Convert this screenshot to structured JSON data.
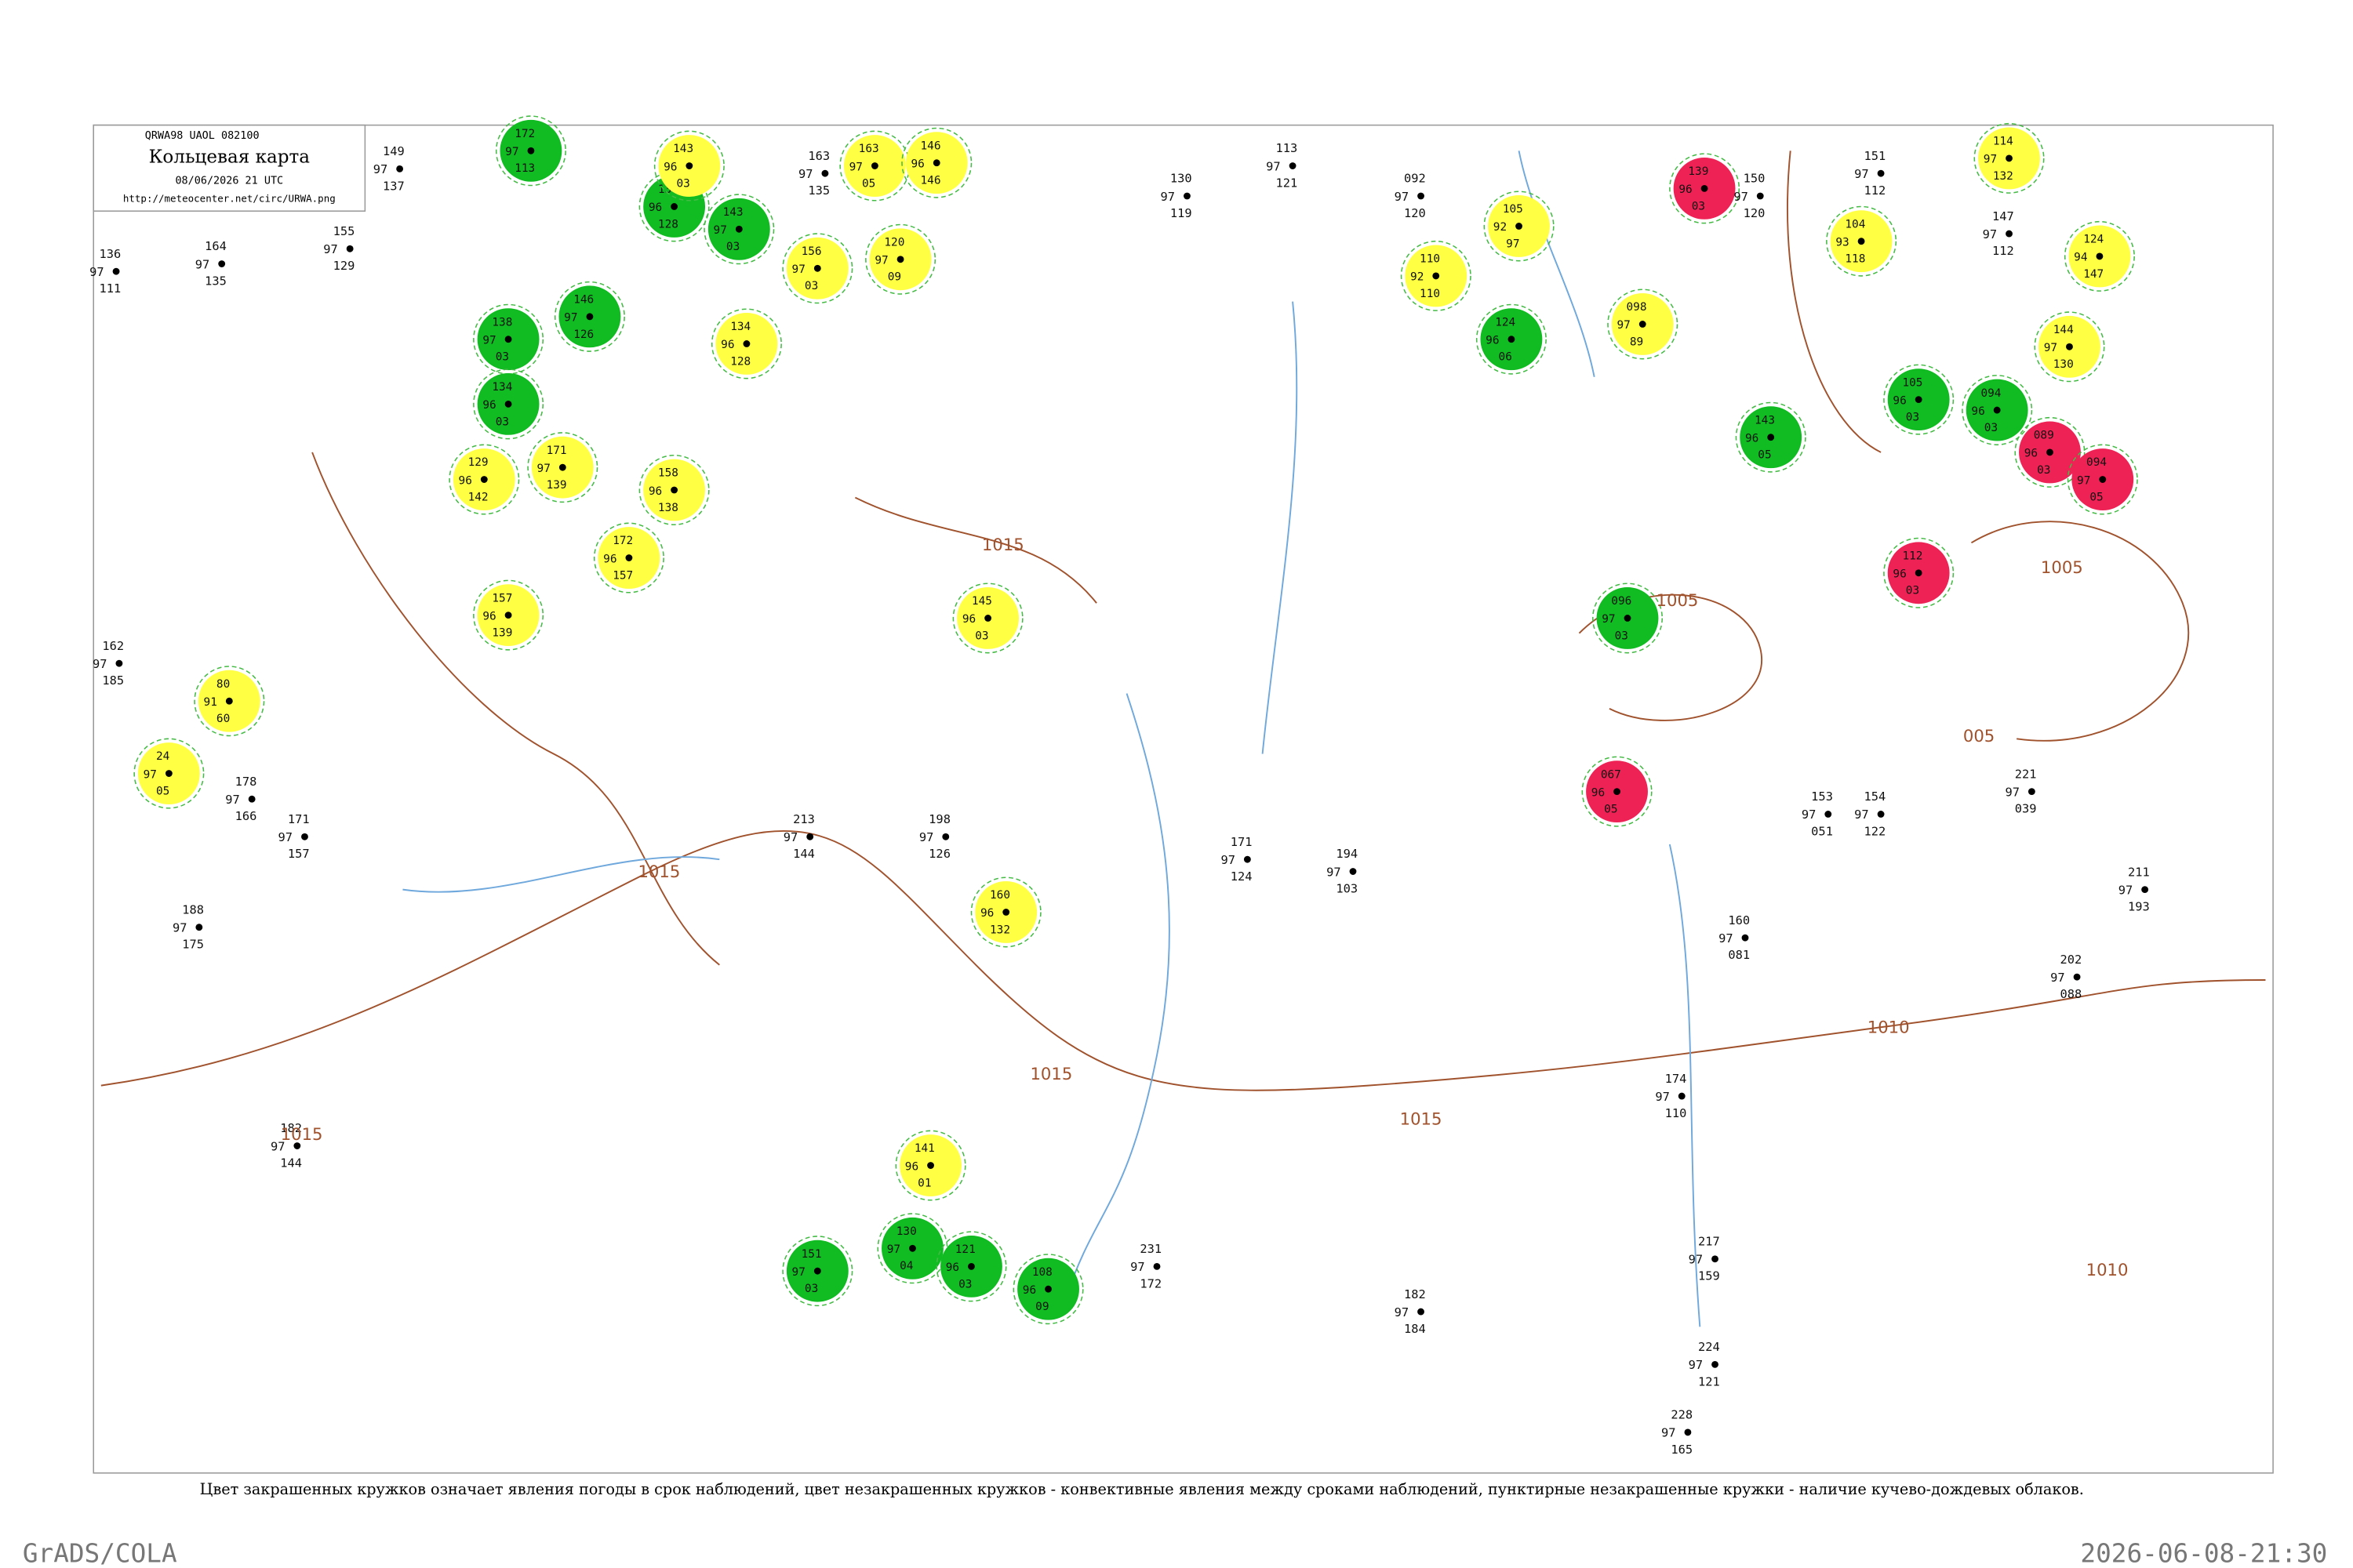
{
  "header": {
    "code": "QRWA98 UAOL 082100",
    "title": "Кольцевая карта",
    "datetime": "08/06/2026 21 UTC",
    "url": "http://meteocenter.net/circ/URWA.png"
  },
  "stations": [
    {
      "values": [
        "172",
        "97",
        "113"
      ],
      "color": "#11bb22"
    },
    {
      "values": [
        "134",
        "96",
        "128"
      ],
      "color": "#11bb22"
    },
    {
      "values": [
        "143",
        "97",
        "03"
      ],
      "color": "#11bb22"
    },
    {
      "values": [
        "138",
        "97",
        "03"
      ],
      "color": "#11bb22"
    },
    {
      "values": [
        "146",
        "97",
        "126"
      ],
      "color": "#11bb22"
    },
    {
      "values": [
        "134",
        "96",
        "03"
      ],
      "color": "#11bb22"
    },
    {
      "values": [
        "129",
        "96",
        "142"
      ],
      "color": "#ffff44"
    },
    {
      "values": [
        "171",
        "97",
        "139"
      ],
      "color": "#ffff44"
    },
    {
      "values": [
        "143",
        "96",
        "03"
      ],
      "color": "#ffff44"
    },
    {
      "values": [
        "163",
        "97",
        "05"
      ],
      "color": "#ffff44"
    },
    {
      "values": [
        "146",
        "96",
        "146"
      ],
      "color": "#ffff44"
    },
    {
      "values": [
        "120",
        "97",
        "09"
      ],
      "color": "#ffff44"
    },
    {
      "values": [
        "156",
        "97",
        "03"
      ],
      "color": "#ffff44"
    },
    {
      "values": [
        "134",
        "96",
        "128"
      ],
      "color": "#ffff44"
    },
    {
      "values": [
        "158",
        "96",
        "138"
      ],
      "color": "#ffff44"
    },
    {
      "values": [
        "157",
        "96",
        "139"
      ],
      "color": "#ffff44"
    },
    {
      "values": [
        "172",
        "96",
        "157"
      ],
      "color": "#ffff44"
    },
    {
      "values": [
        "80",
        "91",
        "60"
      ],
      "color": "#ffff44"
    },
    {
      "values": [
        "24",
        "97",
        "05"
      ],
      "color": "#ffff44"
    },
    {
      "values": [
        "145",
        "96",
        "03"
      ],
      "color": "#ffff44"
    },
    {
      "values": [
        "160",
        "96",
        "132"
      ],
      "color": "#ffff44"
    },
    {
      "values": [
        "141",
        "96",
        "01"
      ],
      "color": "#ffff44"
    },
    {
      "values": [
        "151",
        "97",
        "03"
      ],
      "color": "#11bb22"
    },
    {
      "values": [
        "130",
        "97",
        "04"
      ],
      "color": "#11bb22"
    },
    {
      "values": [
        "121",
        "96",
        "03"
      ],
      "color": "#11bb22"
    },
    {
      "values": [
        "108",
        "96",
        "09"
      ],
      "color": "#11bb22"
    },
    {
      "values": [
        "105",
        "92",
        "97"
      ],
      "color": "#ffff44"
    },
    {
      "values": [
        "110",
        "92",
        "110"
      ],
      "color": "#ffff44"
    },
    {
      "values": [
        "124",
        "96",
        "06"
      ],
      "color": "#11bb22"
    },
    {
      "values": [
        "098",
        "97",
        "89"
      ],
      "color": "#ffff44"
    },
    {
      "values": [
        "104",
        "93",
        "118"
      ],
      "color": "#ffff44"
    },
    {
      "values": [
        "114",
        "97",
        "132"
      ],
      "color": "#ffff44"
    },
    {
      "values": [
        "124",
        "94",
        "147"
      ],
      "color": "#ffff44"
    },
    {
      "values": [
        "144",
        "97",
        "130"
      ],
      "color": "#ffff44"
    },
    {
      "values": [
        "139",
        "96",
        "03"
      ],
      "color": "#ee2255"
    },
    {
      "values": [
        "143",
        "96",
        "05"
      ],
      "color": "#11bb22"
    },
    {
      "values": [
        "096",
        "97",
        "03"
      ],
      "color": "#11bb22"
    },
    {
      "values": [
        "067",
        "96",
        "05"
      ],
      "color": "#ee2255"
    },
    {
      "values": [
        "105",
        "96",
        "03"
      ],
      "color": "#11bb22"
    },
    {
      "values": [
        "094",
        "96",
        "03"
      ],
      "color": "#11bb22"
    },
    {
      "values": [
        "089",
        "96",
        "03"
      ],
      "color": "#ee2255"
    },
    {
      "values": [
        "094",
        "97",
        "05"
      ],
      "color": "#ee2255"
    },
    {
      "values": [
        "112",
        "96",
        "03"
      ],
      "color": "#ee2255"
    }
  ],
  "plain_stations": [
    {
      "values": [
        "149",
        "97",
        "137"
      ]
    },
    {
      "values": [
        "155",
        "97",
        "129"
      ]
    },
    {
      "values": [
        "136",
        "97",
        "111"
      ]
    },
    {
      "values": [
        "164",
        "97",
        "135"
      ]
    },
    {
      "values": [
        "163",
        "97",
        "135"
      ]
    },
    {
      "values": [
        "113",
        "97",
        "121"
      ]
    },
    {
      "values": [
        "130",
        "97",
        "119"
      ]
    },
    {
      "values": [
        "092",
        "97",
        "120"
      ]
    },
    {
      "values": [
        "150",
        "97",
        "120"
      ]
    },
    {
      "values": [
        "151",
        "97",
        "112"
      ]
    },
    {
      "values": [
        "147",
        "97",
        "112"
      ]
    },
    {
      "values": [
        "162",
        "97",
        "185"
      ]
    },
    {
      "values": [
        "178",
        "97",
        "166"
      ]
    },
    {
      "values": [
        "188",
        "97",
        "175"
      ]
    },
    {
      "values": [
        "171",
        "97",
        "157"
      ]
    },
    {
      "values": [
        "182",
        "97",
        "144"
      ]
    },
    {
      "values": [
        "213",
        "97",
        "144"
      ]
    },
    {
      "values": [
        "198",
        "97",
        "126"
      ]
    },
    {
      "values": [
        "171",
        "97",
        "124"
      ]
    },
    {
      "values": [
        "154",
        "97",
        "122"
      ]
    },
    {
      "values": [
        "153",
        "97",
        "051"
      ]
    },
    {
      "values": [
        "160",
        "97",
        "081"
      ]
    },
    {
      "values": [
        "174",
        "97",
        "110"
      ]
    },
    {
      "values": [
        "217",
        "97",
        "159"
      ]
    },
    {
      "values": [
        "224",
        "97",
        "121"
      ]
    },
    {
      "values": [
        "228",
        "97",
        "165"
      ]
    },
    {
      "values": [
        "182",
        "97",
        "184"
      ]
    },
    {
      "values": [
        "231",
        "97",
        "172"
      ]
    },
    {
      "values": [
        "221",
        "97",
        "039"
      ]
    },
    {
      "values": [
        "211",
        "97",
        "193"
      ]
    },
    {
      "values": [
        "202",
        "97",
        "088"
      ]
    },
    {
      "values": [
        "194",
        "97",
        "103"
      ]
    }
  ],
  "isobar_labels": [
    "1015",
    "1015",
    "1015",
    "1015",
    "1015",
    "1005",
    "1005",
    "1010",
    "1010",
    "005"
  ],
  "caption": "Цвет закрашенных кружков означает явления погоды в срок наблюдений, цвет незакрашенных кружков - конвективные явления между сроками наблюдений, пунктирные незакрашенные кружки - наличие кучево-дождевых облаков.",
  "footer": {
    "left": "GrADS/COLA",
    "right": "2026-06-08-21:30"
  }
}
